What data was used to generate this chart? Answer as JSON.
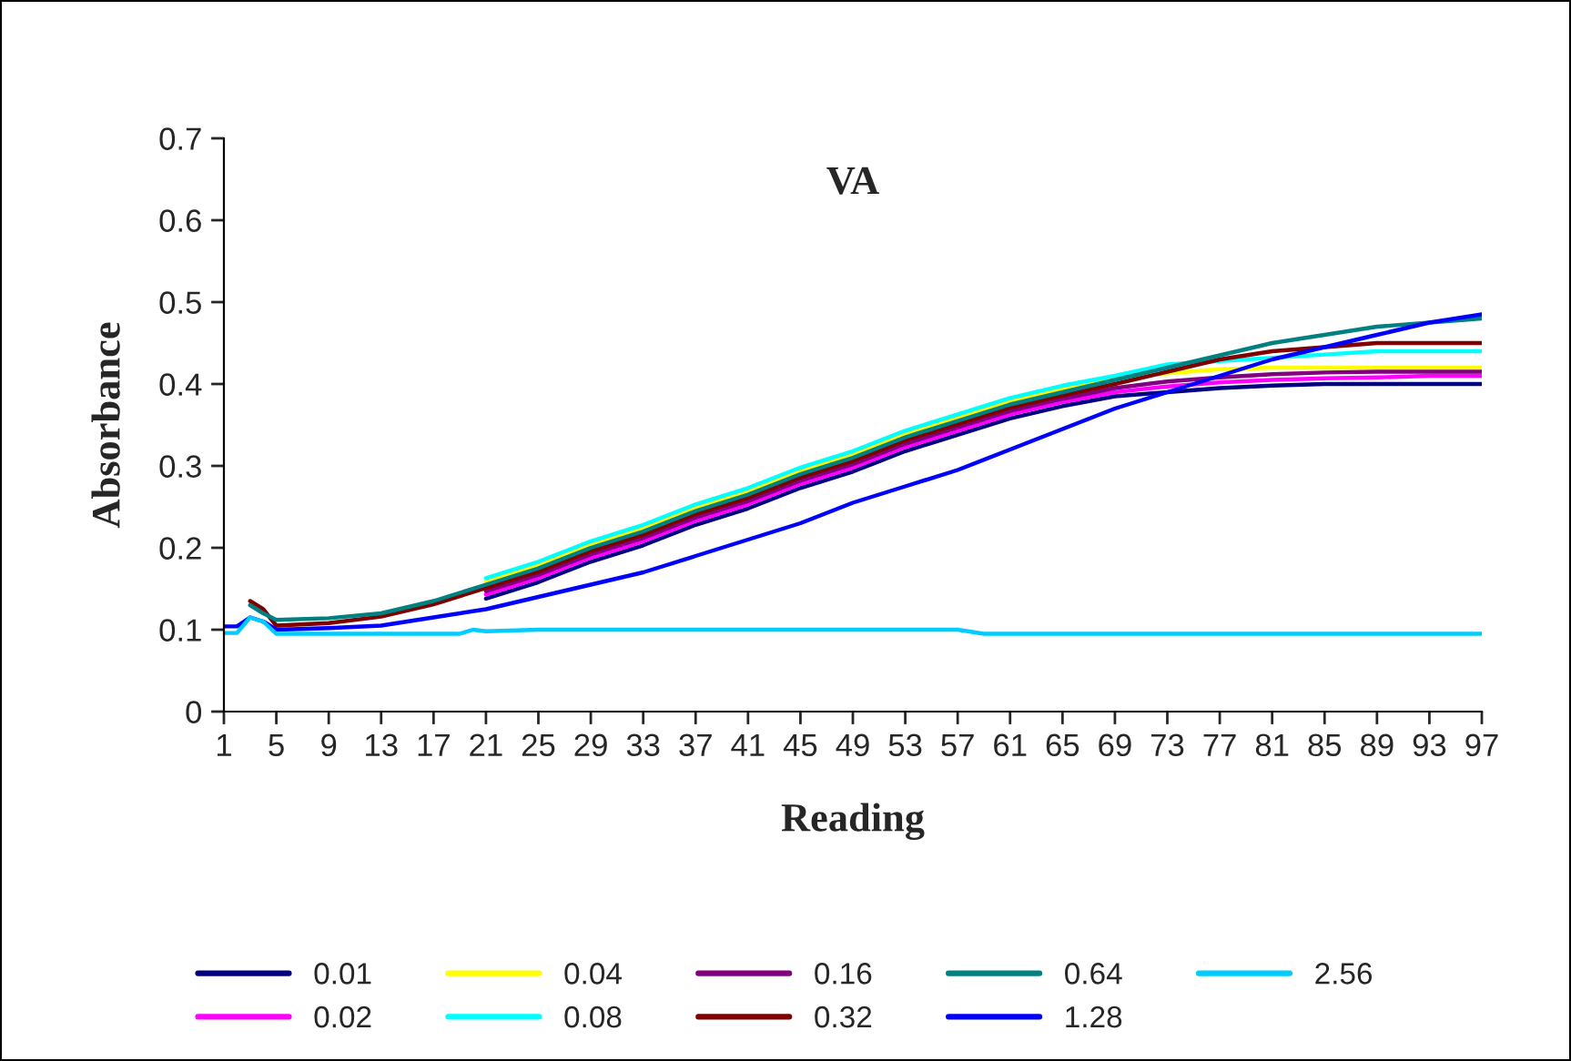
{
  "chart_data": {
    "type": "line",
    "title": "VA",
    "xlabel": "Reading",
    "ylabel": "Absorbance",
    "xlim": [
      1,
      97
    ],
    "xticks": [
      1,
      5,
      9,
      13,
      17,
      21,
      25,
      29,
      33,
      37,
      41,
      45,
      49,
      53,
      57,
      61,
      65,
      69,
      73,
      77,
      81,
      85,
      89,
      93,
      97
    ],
    "ylim": [
      0,
      0.7
    ],
    "yticks": [
      0,
      0.1,
      0.2,
      0.3,
      0.4,
      0.5,
      0.6,
      0.7
    ],
    "grid": false,
    "legend": "bottom",
    "marker": "none",
    "line_style": "solid",
    "x": [
      1,
      2,
      3,
      4,
      5,
      9,
      13,
      17,
      21,
      25,
      29,
      33,
      37,
      41,
      45,
      49,
      53,
      57,
      61,
      65,
      69,
      73,
      77,
      81,
      85,
      89,
      93,
      97
    ],
    "series": [
      {
        "name": "0.01",
        "color": "#000080",
        "values": [
          null,
          null,
          null,
          null,
          null,
          null,
          null,
          null,
          0.138,
          0.158,
          0.183,
          0.203,
          0.228,
          0.248,
          0.273,
          0.293,
          0.318,
          0.338,
          0.358,
          0.373,
          0.385,
          0.39,
          0.395,
          0.398,
          0.4,
          0.4,
          0.4,
          0.4
        ]
      },
      {
        "name": "0.02",
        "color": "#ff00ff",
        "values": [
          null,
          null,
          null,
          null,
          null,
          null,
          null,
          null,
          0.143,
          0.163,
          0.188,
          0.208,
          0.233,
          0.253,
          0.278,
          0.298,
          0.323,
          0.343,
          0.363,
          0.378,
          0.39,
          0.397,
          0.402,
          0.405,
          0.407,
          0.408,
          0.41,
          0.41
        ]
      },
      {
        "name": "0.04",
        "color": "#ffff00",
        "values": [
          null,
          null,
          null,
          null,
          null,
          null,
          null,
          null,
          0.159,
          0.179,
          0.204,
          0.224,
          0.249,
          0.269,
          0.294,
          0.314,
          0.339,
          0.359,
          0.379,
          0.394,
          0.408,
          0.413,
          0.418,
          0.42,
          0.42,
          0.42,
          0.42,
          0.42
        ]
      },
      {
        "name": "0.08",
        "color": "#00ffff",
        "values": [
          null,
          null,
          null,
          null,
          null,
          null,
          null,
          null,
          0.163,
          0.183,
          0.208,
          0.228,
          0.253,
          0.273,
          0.298,
          0.318,
          0.343,
          0.363,
          0.383,
          0.398,
          0.41,
          0.424,
          0.428,
          0.432,
          0.436,
          0.44,
          0.44,
          0.44
        ]
      },
      {
        "name": "0.16",
        "color": "#800080",
        "values": [
          null,
          null,
          null,
          null,
          null,
          null,
          null,
          null,
          0.147,
          0.167,
          0.192,
          0.212,
          0.237,
          0.257,
          0.282,
          0.302,
          0.327,
          0.347,
          0.367,
          0.382,
          0.395,
          0.403,
          0.408,
          0.412,
          0.414,
          0.415,
          0.415,
          0.415
        ]
      },
      {
        "name": "0.32",
        "color": "#800000",
        "values": [
          null,
          null,
          0.135,
          0.125,
          0.105,
          0.108,
          0.116,
          0.131,
          0.151,
          0.171,
          0.196,
          0.216,
          0.241,
          0.261,
          0.286,
          0.306,
          0.331,
          0.351,
          0.371,
          0.386,
          0.4,
          0.415,
          0.43,
          0.44,
          0.445,
          0.45,
          0.45,
          0.45
        ]
      },
      {
        "name": "0.64",
        "color": "#008080",
        "values": [
          null,
          null,
          0.13,
          0.12,
          0.112,
          0.114,
          0.12,
          0.135,
          0.155,
          0.175,
          0.2,
          0.22,
          0.245,
          0.265,
          0.29,
          0.31,
          0.335,
          0.355,
          0.375,
          0.39,
          0.405,
          0.42,
          0.435,
          0.45,
          0.46,
          0.47,
          0.475,
          0.48
        ]
      },
      {
        "name": "1.28",
        "color": "#0000ff",
        "values": [
          0.104,
          0.104,
          0.115,
          0.11,
          0.1,
          0.102,
          0.105,
          0.115,
          0.125,
          0.14,
          0.155,
          0.17,
          0.19,
          0.21,
          0.23,
          0.255,
          0.275,
          0.295,
          0.32,
          0.345,
          0.37,
          0.39,
          0.41,
          0.43,
          0.445,
          0.46,
          0.475,
          0.485
        ]
      },
      {
        "name": "2.56",
        "color": "#00ccff",
        "x": [
          1,
          2,
          3,
          4,
          5,
          9,
          13,
          17,
          19,
          20,
          21,
          25,
          57,
          59,
          61,
          97
        ],
        "values": [
          0.096,
          0.096,
          0.115,
          0.11,
          0.095,
          0.095,
          0.095,
          0.095,
          0.095,
          0.1,
          0.098,
          0.1,
          0.1,
          0.095,
          0.095,
          0.095
        ]
      }
    ]
  }
}
